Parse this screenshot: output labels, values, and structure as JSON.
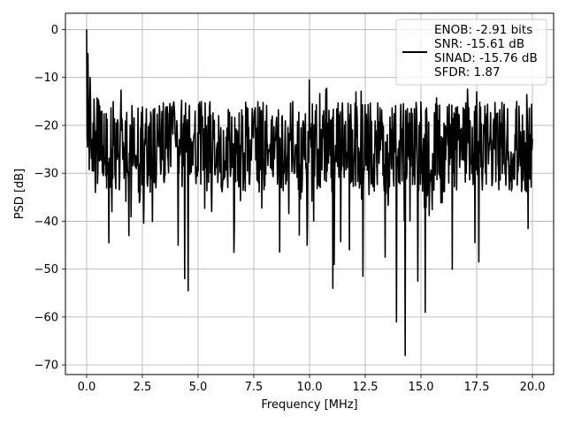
{
  "chart_data": {
    "type": "line",
    "title": "",
    "xlabel": "Frequency [MHz]",
    "ylabel": "PSD [dB]",
    "xlim": [
      -0.95,
      20.95
    ],
    "ylim": [
      -72,
      3.4
    ],
    "xticks": [
      0.0,
      2.5,
      5.0,
      7.5,
      10.0,
      12.5,
      15.0,
      17.5,
      20.0
    ],
    "xtick_labels": [
      "0.0",
      "2.5",
      "5.0",
      "7.5",
      "10.0",
      "12.5",
      "15.0",
      "17.5",
      "20.0"
    ],
    "yticks": [
      0,
      -10,
      -20,
      -30,
      -40,
      -50,
      -60,
      -70
    ],
    "ytick_labels": [
      "0",
      "−10",
      "−20",
      "−30",
      "−40",
      "−50",
      "−60",
      "−70"
    ],
    "grid": true,
    "legend_position": "top-right",
    "series": [
      {
        "color": "#000000",
        "x_range": [
          0,
          20
        ],
        "points": 1024,
        "typical_range": [
          -34,
          -15
        ],
        "values_note": "noise-like spectrum",
        "peaks": [
          {
            "x": 0.0,
            "y": 0
          },
          {
            "x": 0.05,
            "y": -5
          },
          {
            "x": 0.15,
            "y": -10
          },
          {
            "x": 10.0,
            "y": -10.5
          },
          {
            "x": 17.5,
            "y": -13
          },
          {
            "x": 19.3,
            "y": -15
          }
        ],
        "dips": [
          {
            "x": 0.4,
            "y": -34
          },
          {
            "x": 1.0,
            "y": -44.5
          },
          {
            "x": 1.9,
            "y": -43
          },
          {
            "x": 4.4,
            "y": -52
          },
          {
            "x": 4.55,
            "y": -54.5
          },
          {
            "x": 6.6,
            "y": -46.5
          },
          {
            "x": 9.9,
            "y": -45
          },
          {
            "x": 11.05,
            "y": -54
          },
          {
            "x": 11.1,
            "y": -49
          },
          {
            "x": 12.4,
            "y": -51.5
          },
          {
            "x": 13.4,
            "y": -47.5
          },
          {
            "x": 13.9,
            "y": -61
          },
          {
            "x": 14.3,
            "y": -68
          },
          {
            "x": 14.85,
            "y": -52.5
          },
          {
            "x": 15.2,
            "y": -59
          },
          {
            "x": 16.4,
            "y": -50
          },
          {
            "x": 17.6,
            "y": -48.5
          },
          {
            "x": 19.8,
            "y": -41.5
          }
        ]
      }
    ],
    "legend_lines": [
      "ENOB: -2.91 bits",
      "SNR: -15.61 dB",
      "SINAD: -15.76 dB",
      "SFDR: 1.87"
    ]
  }
}
